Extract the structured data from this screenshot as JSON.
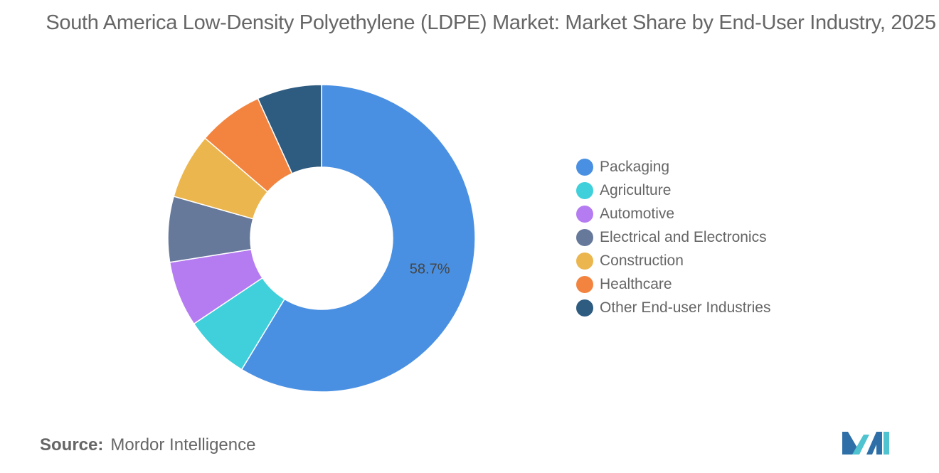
{
  "chart_data": {
    "type": "pie",
    "variant": "donut",
    "title": "South America Low-Density Polyethylene (LDPE) Market: Market Share by End-User Industry, 2025",
    "categories": [
      "Packaging",
      "Agriculture",
      "Automotive",
      "Electrical and Electronics",
      "Construction",
      "Healthcare",
      "Other End-user Industries"
    ],
    "values": [
      58.7,
      6.9,
      6.9,
      6.9,
      6.9,
      6.9,
      6.8
    ],
    "data_labels": [
      "58.7%",
      "",
      "",
      "",
      "",
      "",
      ""
    ],
    "colors": [
      "#4a90e2",
      "#3fd0db",
      "#b57cf2",
      "#66799a",
      "#ecb64e",
      "#f2843f",
      "#2e5b80"
    ],
    "start_angle_deg": 0,
    "direction": "clockwise",
    "legend_position": "right"
  },
  "source": {
    "label": "Source:",
    "text": "Mordor Intelligence"
  },
  "logo": {
    "name": "mordor-intelligence-logo",
    "colors": [
      "#2e6fa8",
      "#4fc3cf"
    ]
  }
}
